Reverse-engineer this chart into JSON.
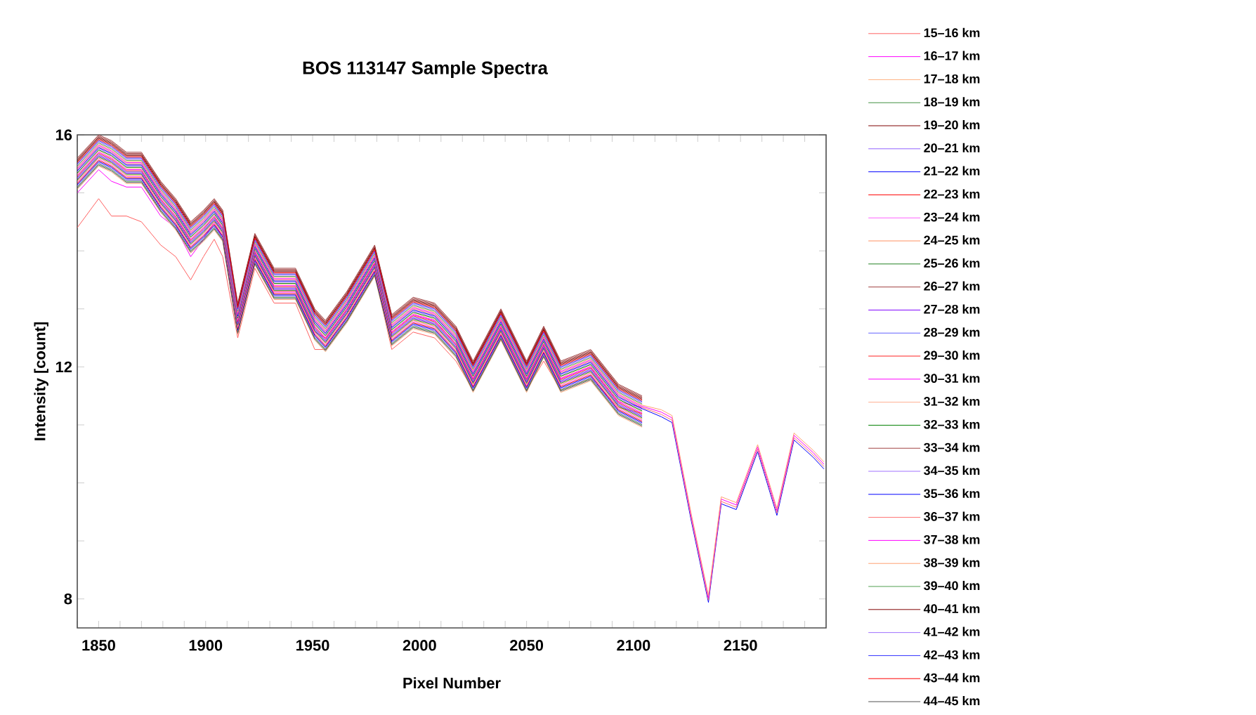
{
  "chart_data": {
    "type": "line",
    "title": "BOS 113147 Sample Spectra",
    "xlabel": "Pixel Number",
    "ylabel": "Intensity [count]",
    "xlim": [
      1840,
      2190
    ],
    "ylim": [
      7.5,
      16
    ],
    "xticks": [
      {
        "value": 1840,
        "label": null
      },
      1850,
      {
        "value": 1860,
        "label": null
      },
      {
        "value": 1870,
        "label": null
      },
      {
        "value": 1880,
        "label": null
      },
      {
        "value": 1890,
        "label": null
      },
      1900,
      {
        "value": 1910,
        "label": null
      },
      {
        "value": 1920,
        "label": null
      },
      {
        "value": 1930,
        "label": null
      },
      {
        "value": 1940,
        "label": null
      },
      1950,
      {
        "value": 1960,
        "label": null
      },
      {
        "value": 1970,
        "label": null
      },
      {
        "value": 1980,
        "label": null
      },
      {
        "value": 1990,
        "label": null
      },
      2000,
      {
        "value": 2010,
        "label": null
      },
      {
        "value": 2020,
        "label": null
      },
      {
        "value": 2030,
        "label": null
      },
      {
        "value": 2040,
        "label": null
      },
      2050,
      {
        "value": 2060,
        "label": null
      },
      {
        "value": 2070,
        "label": null
      },
      {
        "value": 2080,
        "label": null
      },
      {
        "value": 2090,
        "label": null
      },
      2100,
      {
        "value": 2110,
        "label": null
      },
      {
        "value": 2120,
        "label": null
      },
      {
        "value": 2130,
        "label": null
      },
      {
        "value": 2140,
        "label": null
      },
      2150,
      {
        "value": 2160,
        "label": null
      },
      {
        "value": 2170,
        "label": null
      },
      {
        "value": 2180,
        "label": null
      }
    ],
    "yticks": [
      8,
      {
        "value": 9,
        "label": null
      },
      {
        "value": 10,
        "label": null
      },
      {
        "value": 11,
        "label": null
      },
      12,
      {
        "value": 13,
        "label": null
      },
      {
        "value": 14,
        "label": null
      },
      {
        "value": 15,
        "label": null
      },
      16
    ],
    "legend": "right",
    "x": [
      1840,
      1850,
      1856,
      1863,
      1870,
      1879,
      1886,
      1893,
      1899,
      1904,
      1908,
      1915,
      1923,
      1932,
      1942,
      1951,
      1956,
      1966,
      1979,
      1987,
      1997,
      2007,
      2017,
      2025,
      2038,
      2050,
      2058,
      2066,
      2080,
      2093,
      2104,
      2113,
      2118,
      2127,
      2135,
      2141,
      2148,
      2158,
      2167,
      2175,
      2184,
      2189
    ],
    "series": [
      {
        "name": "15–16 km",
        "color": "#ff6060",
        "values": [
          14.4,
          14.9,
          14.6,
          14.6,
          14.5,
          14.1,
          13.9,
          13.5,
          13.9,
          14.2,
          13.9,
          12.5,
          13.7,
          13.1,
          13.1,
          12.3,
          12.3,
          12.8,
          13.6,
          12.3,
          12.6,
          12.5,
          12.1,
          11.6,
          12.5,
          11.6,
          12.1,
          11.6,
          11.8,
          11.3,
          11.2,
          null,
          null,
          null,
          null,
          null,
          null,
          null,
          null,
          null,
          null,
          null
        ]
      },
      {
        "name": "16–17 km",
        "color": "#ff00ff",
        "values": [
          15.0,
          15.4,
          15.2,
          15.1,
          15.1,
          14.6,
          14.4,
          13.9,
          14.2,
          14.5,
          14.2,
          12.7,
          13.9,
          13.3,
          13.3,
          12.6,
          12.5,
          13.0,
          13.8,
          12.6,
          12.9,
          12.8,
          12.4,
          11.8,
          12.7,
          11.8,
          12.4,
          11.8,
          12.0,
          11.4,
          11.3,
          null,
          null,
          null,
          null,
          null,
          null,
          null,
          null,
          null,
          null,
          null
        ]
      },
      {
        "name": "17–18 km",
        "color": "#ffb080",
        "values": [
          15.06,
          15.46,
          15.36,
          15.16,
          15.16,
          14.66,
          14.36,
          13.96,
          14.16,
          14.36,
          14.16,
          12.56,
          13.76,
          13.16,
          13.16,
          12.46,
          12.26,
          12.76,
          13.56,
          12.36,
          12.66,
          12.56,
          12.16,
          11.56,
          12.46,
          11.56,
          12.16,
          11.56,
          11.76,
          11.16,
          10.96,
          null,
          null,
          null,
          null,
          null,
          null,
          null,
          null,
          null,
          null,
          null
        ]
      },
      {
        "name": "18–19 km",
        "color": "#409040",
        "values": [
          15.1,
          15.5,
          15.4,
          15.2,
          15.2,
          14.7,
          14.4,
          14.0,
          14.2,
          14.4,
          14.2,
          12.6,
          13.8,
          13.2,
          13.2,
          12.5,
          12.3,
          12.8,
          13.6,
          12.4,
          12.7,
          12.6,
          12.2,
          11.6,
          12.5,
          11.6,
          12.2,
          11.6,
          11.8,
          11.2,
          11.0,
          null,
          null,
          null,
          null,
          null,
          null,
          null,
          null,
          null,
          null,
          null
        ]
      },
      {
        "name": "19–20 km",
        "color": "#800000",
        "values": [
          15.56,
          15.96,
          15.86,
          15.66,
          15.66,
          15.16,
          14.86,
          14.46,
          14.66,
          14.86,
          14.66,
          13.06,
          14.26,
          13.66,
          13.66,
          12.96,
          12.76,
          13.26,
          14.06,
          12.86,
          13.16,
          13.06,
          12.66,
          12.06,
          12.96,
          12.06,
          12.66,
          12.06,
          12.26,
          11.66,
          11.46,
          null,
          null,
          null,
          null,
          null,
          null,
          null,
          null,
          null,
          null,
          null
        ]
      },
      {
        "name": "20–21 km",
        "color": "#9060ff",
        "values": [
          15.12,
          15.52,
          15.42,
          15.22,
          15.22,
          14.72,
          14.42,
          14.02,
          14.22,
          14.42,
          14.22,
          12.62,
          13.82,
          13.22,
          13.22,
          12.52,
          12.32,
          12.82,
          13.62,
          12.42,
          12.72,
          12.62,
          12.22,
          11.62,
          12.52,
          11.62,
          12.22,
          11.62,
          11.82,
          11.22,
          11.02,
          null,
          null,
          null,
          null,
          null,
          null,
          null,
          null,
          null,
          null,
          null
        ]
      },
      {
        "name": "21–22 km",
        "color": "#0000ff",
        "values": [
          15.14,
          15.54,
          15.44,
          15.24,
          15.24,
          14.74,
          14.44,
          14.04,
          14.24,
          14.44,
          14.24,
          12.64,
          13.84,
          13.24,
          13.24,
          12.54,
          12.34,
          12.84,
          13.64,
          12.44,
          12.74,
          12.64,
          12.24,
          11.64,
          12.54,
          11.64,
          12.24,
          11.64,
          11.84,
          11.24,
          11.04,
          null,
          null,
          null,
          null,
          null,
          null,
          null,
          null,
          null,
          null,
          null
        ]
      },
      {
        "name": "22–23 km",
        "color": "#ff0000",
        "values": [
          15.16,
          15.56,
          15.46,
          15.26,
          15.26,
          14.76,
          14.46,
          14.06,
          14.26,
          14.46,
          14.26,
          12.66,
          13.86,
          13.26,
          13.26,
          12.56,
          12.36,
          12.86,
          13.66,
          12.46,
          12.76,
          12.66,
          12.26,
          11.66,
          12.56,
          11.66,
          12.26,
          11.66,
          11.86,
          11.26,
          11.06,
          null,
          null,
          null,
          null,
          null,
          null,
          null,
          null,
          null,
          null,
          null
        ]
      },
      {
        "name": "23–24 km",
        "color": "#ff60ff",
        "values": [
          15.18,
          15.58,
          15.48,
          15.28,
          15.28,
          14.78,
          14.48,
          14.08,
          14.28,
          14.48,
          14.28,
          12.68,
          13.88,
          13.28,
          13.28,
          12.58,
          12.38,
          12.88,
          13.68,
          12.48,
          12.78,
          12.68,
          12.28,
          11.68,
          12.58,
          11.68,
          12.28,
          11.68,
          11.88,
          11.28,
          11.08,
          null,
          null,
          null,
          null,
          null,
          null,
          null,
          null,
          null,
          null,
          null
        ]
      },
      {
        "name": "24–25 km",
        "color": "#ff9060",
        "values": [
          15.2,
          15.6,
          15.5,
          15.3,
          15.3,
          14.8,
          14.5,
          14.1,
          14.3,
          14.5,
          14.3,
          12.7,
          13.9,
          13.3,
          13.3,
          12.6,
          12.4,
          12.9,
          13.7,
          12.5,
          12.8,
          12.7,
          12.3,
          11.7,
          12.6,
          11.7,
          12.3,
          11.7,
          11.9,
          11.3,
          11.1,
          null,
          null,
          null,
          null,
          null,
          null,
          null,
          null,
          null,
          null,
          null
        ]
      },
      {
        "name": "25–26 km",
        "color": "#208020",
        "values": [
          15.22,
          15.62,
          15.52,
          15.32,
          15.32,
          14.82,
          14.52,
          14.12,
          14.32,
          14.52,
          14.32,
          12.72,
          13.92,
          13.32,
          13.32,
          12.62,
          12.42,
          12.92,
          13.72,
          12.52,
          12.82,
          12.72,
          12.32,
          11.72,
          12.62,
          11.72,
          12.32,
          11.72,
          11.92,
          11.32,
          11.12,
          null,
          null,
          null,
          null,
          null,
          null,
          null,
          null,
          null,
          null,
          null
        ]
      },
      {
        "name": "26–27 km",
        "color": "#a04040",
        "values": [
          15.6,
          16.0,
          15.9,
          15.7,
          15.7,
          15.2,
          14.9,
          14.5,
          14.7,
          14.9,
          14.7,
          13.1,
          14.3,
          13.7,
          13.7,
          13.0,
          12.8,
          13.3,
          14.1,
          12.9,
          13.2,
          13.1,
          12.7,
          12.1,
          13.0,
          12.1,
          12.7,
          12.1,
          12.3,
          11.7,
          11.5,
          null,
          null,
          null,
          null,
          null,
          null,
          null,
          null,
          null,
          null,
          null
        ]
      },
      {
        "name": "27–28 km",
        "color": "#8000ff",
        "values": [
          15.24,
          15.64,
          15.54,
          15.34,
          15.34,
          14.84,
          14.54,
          14.14,
          14.34,
          14.54,
          14.34,
          12.74,
          13.94,
          13.34,
          13.34,
          12.64,
          12.44,
          12.94,
          13.74,
          12.54,
          12.84,
          12.74,
          12.34,
          11.74,
          12.64,
          11.74,
          12.34,
          11.74,
          11.94,
          11.34,
          11.14,
          null,
          null,
          null,
          null,
          null,
          null,
          null,
          null,
          null,
          null,
          null
        ]
      },
      {
        "name": "28–29 km",
        "color": "#6060ff",
        "values": [
          15.26,
          15.66,
          15.56,
          15.36,
          15.36,
          14.86,
          14.56,
          14.16,
          14.36,
          14.56,
          14.36,
          12.76,
          13.96,
          13.36,
          13.36,
          12.66,
          12.46,
          12.96,
          13.76,
          12.56,
          12.86,
          12.76,
          12.36,
          11.76,
          12.66,
          11.76,
          12.36,
          11.76,
          11.96,
          11.36,
          11.16,
          null,
          null,
          null,
          null,
          null,
          null,
          null,
          null,
          null,
          null,
          null
        ]
      },
      {
        "name": "29–30 km",
        "color": "#ff2020",
        "values": [
          15.28,
          15.68,
          15.58,
          15.38,
          15.38,
          14.88,
          14.58,
          14.18,
          14.38,
          14.58,
          14.38,
          12.78,
          13.98,
          13.38,
          13.38,
          12.68,
          12.48,
          12.98,
          13.78,
          12.58,
          12.88,
          12.78,
          12.38,
          11.78,
          12.68,
          11.78,
          12.38,
          11.78,
          11.98,
          11.38,
          11.18,
          null,
          null,
          null,
          null,
          null,
          null,
          null,
          null,
          null,
          null,
          null
        ]
      },
      {
        "name": "30–31 km",
        "color": "#ff00ff",
        "values": [
          15.3,
          15.7,
          15.6,
          15.4,
          15.4,
          14.9,
          14.6,
          14.2,
          14.4,
          14.6,
          14.4,
          12.8,
          14.0,
          13.4,
          13.4,
          12.7,
          12.5,
          13.0,
          13.8,
          12.6,
          12.9,
          12.8,
          12.4,
          11.8,
          12.7,
          11.8,
          12.4,
          11.8,
          12.0,
          11.4,
          11.2,
          null,
          null,
          null,
          null,
          null,
          null,
          null,
          null,
          null,
          null,
          null
        ]
      },
      {
        "name": "31–32 km",
        "color": "#ffb090",
        "values": [
          15.32,
          15.72,
          15.62,
          15.42,
          15.42,
          14.92,
          14.62,
          14.22,
          14.42,
          14.62,
          14.42,
          12.82,
          14.02,
          13.42,
          13.42,
          12.72,
          12.52,
          13.02,
          13.82,
          12.62,
          12.92,
          12.82,
          12.42,
          11.82,
          12.72,
          11.82,
          12.42,
          11.82,
          12.02,
          11.42,
          11.22,
          null,
          null,
          null,
          null,
          null,
          null,
          null,
          null,
          null,
          null,
          null
        ]
      },
      {
        "name": "32–33 km",
        "color": "#008000",
        "values": [
          15.34,
          15.74,
          15.64,
          15.44,
          15.44,
          14.94,
          14.64,
          14.24,
          14.44,
          14.64,
          14.44,
          12.84,
          14.04,
          13.44,
          13.44,
          12.74,
          12.54,
          13.04,
          13.84,
          12.64,
          12.94,
          12.84,
          12.44,
          11.84,
          12.74,
          11.84,
          12.44,
          11.84,
          12.04,
          11.44,
          11.24,
          null,
          null,
          null,
          null,
          null,
          null,
          null,
          null,
          null,
          null,
          null
        ]
      },
      {
        "name": "33–34 km",
        "color": "#a04040",
        "values": [
          15.58,
          15.98,
          15.88,
          15.68,
          15.68,
          15.18,
          14.88,
          14.48,
          14.68,
          14.88,
          14.68,
          13.08,
          14.28,
          13.68,
          13.68,
          12.98,
          12.78,
          13.28,
          14.08,
          12.88,
          13.18,
          13.08,
          12.68,
          12.08,
          12.98,
          12.08,
          12.68,
          12.08,
          12.28,
          11.68,
          11.48,
          null,
          null,
          null,
          null,
          null,
          null,
          null,
          null,
          null,
          null,
          null
        ]
      },
      {
        "name": "34–35 km",
        "color": "#a070ff",
        "values": [
          15.36,
          15.76,
          15.66,
          15.46,
          15.46,
          14.96,
          14.66,
          14.26,
          14.46,
          14.66,
          14.46,
          12.86,
          14.06,
          13.46,
          13.46,
          12.76,
          12.56,
          13.06,
          13.86,
          12.66,
          12.96,
          12.86,
          12.46,
          11.86,
          12.76,
          11.86,
          12.46,
          11.86,
          12.06,
          11.46,
          11.26,
          null,
          null,
          null,
          null,
          null,
          null,
          null,
          null,
          null,
          null,
          null
        ]
      },
      {
        "name": "35–36 km",
        "color": "#0000ff",
        "values": [
          15.38,
          15.78,
          15.68,
          15.48,
          15.48,
          14.98,
          14.68,
          14.28,
          14.48,
          14.68,
          14.48,
          12.88,
          14.08,
          13.48,
          13.48,
          12.78,
          12.58,
          13.08,
          13.88,
          12.68,
          12.98,
          12.88,
          12.48,
          11.88,
          12.78,
          11.88,
          12.48,
          11.88,
          12.08,
          11.48,
          11.28,
          11.14,
          11.04,
          9.34,
          7.94,
          9.64,
          9.54,
          10.54,
          9.44,
          10.74,
          10.44,
          10.24
        ]
      },
      {
        "name": "36–37 km",
        "color": "#ff7070",
        "values": [
          15.4,
          15.8,
          15.7,
          15.5,
          15.5,
          15.0,
          14.7,
          14.3,
          14.5,
          14.7,
          14.5,
          12.9,
          14.1,
          13.5,
          13.5,
          12.8,
          12.6,
          13.1,
          13.9,
          12.7,
          13.0,
          12.9,
          12.5,
          11.9,
          12.8,
          11.9,
          12.5,
          11.9,
          12.1,
          11.5,
          11.3,
          11.18,
          11.08,
          9.38,
          7.98,
          9.68,
          9.58,
          10.58,
          9.48,
          10.78,
          10.48,
          10.28
        ]
      },
      {
        "name": "37–38 km",
        "color": "#ff00ff",
        "values": [
          15.42,
          15.82,
          15.72,
          15.52,
          15.52,
          15.02,
          14.72,
          14.32,
          14.52,
          14.72,
          14.52,
          12.92,
          14.12,
          13.52,
          13.52,
          12.82,
          12.62,
          13.12,
          13.92,
          12.72,
          13.02,
          12.92,
          12.52,
          11.92,
          12.82,
          11.92,
          12.52,
          11.92,
          12.12,
          11.52,
          11.32,
          11.22,
          11.12,
          9.42,
          8.02,
          9.72,
          9.62,
          10.62,
          9.52,
          10.82,
          10.52,
          10.32
        ]
      },
      {
        "name": "38–39 km",
        "color": "#ffa070",
        "values": [
          15.44,
          15.84,
          15.74,
          15.54,
          15.54,
          15.04,
          14.74,
          14.34,
          14.54,
          14.74,
          14.54,
          12.94,
          14.14,
          13.54,
          13.54,
          12.84,
          12.64,
          13.14,
          13.94,
          12.74,
          13.04,
          12.94,
          12.54,
          11.94,
          12.84,
          11.94,
          12.54,
          11.94,
          12.14,
          11.54,
          11.34,
          11.26,
          11.16,
          9.46,
          8.06,
          9.76,
          9.66,
          10.66,
          9.56,
          10.86,
          10.56,
          10.36
        ]
      },
      {
        "name": "39–40 km",
        "color": "#50a050",
        "values": [
          15.46,
          15.86,
          15.76,
          15.56,
          15.56,
          15.06,
          14.76,
          14.36,
          14.56,
          14.76,
          14.56,
          12.96,
          14.16,
          13.56,
          13.56,
          12.86,
          12.66,
          13.16,
          13.96,
          12.76,
          13.06,
          12.96,
          12.56,
          11.96,
          12.86,
          11.96,
          12.56,
          11.96,
          12.16,
          11.56,
          11.36,
          null,
          null,
          null,
          null,
          null,
          null,
          null,
          null,
          null,
          null,
          null
        ]
      },
      {
        "name": "40–41 km",
        "color": "#800000",
        "values": [
          15.54,
          15.94,
          15.84,
          15.64,
          15.64,
          15.14,
          14.84,
          14.44,
          14.64,
          14.84,
          14.64,
          13.04,
          14.24,
          13.64,
          13.64,
          12.94,
          12.74,
          13.24,
          14.04,
          12.84,
          13.14,
          13.04,
          12.64,
          12.04,
          12.94,
          12.04,
          12.64,
          12.04,
          12.24,
          11.64,
          11.44,
          null,
          null,
          null,
          null,
          null,
          null,
          null,
          null,
          null,
          null,
          null
        ]
      },
      {
        "name": "41–42 km",
        "color": "#a070ff",
        "values": [
          15.48,
          15.88,
          15.78,
          15.58,
          15.58,
          15.08,
          14.78,
          14.38,
          14.58,
          14.78,
          14.58,
          12.98,
          14.18,
          13.58,
          13.58,
          12.88,
          12.68,
          13.18,
          13.98,
          12.78,
          13.08,
          12.98,
          12.58,
          11.98,
          12.88,
          11.98,
          12.58,
          11.98,
          12.18,
          11.58,
          11.38,
          null,
          null,
          null,
          null,
          null,
          null,
          null,
          null,
          null,
          null,
          null
        ]
      },
      {
        "name": "42–43 km",
        "color": "#3030ff",
        "values": [
          15.5,
          15.9,
          15.8,
          15.6,
          15.6,
          15.1,
          14.8,
          14.4,
          14.6,
          14.8,
          14.6,
          13.0,
          14.2,
          13.6,
          13.6,
          12.9,
          12.7,
          13.2,
          14.0,
          12.8,
          13.1,
          13.0,
          12.6,
          12.0,
          12.9,
          12.0,
          12.6,
          12.0,
          12.2,
          11.6,
          11.4,
          null,
          null,
          null,
          null,
          null,
          null,
          null,
          null,
          null,
          null,
          null
        ]
      },
      {
        "name": "43–44 km",
        "color": "#ff0000",
        "values": [
          15.52,
          15.92,
          15.82,
          15.62,
          15.62,
          15.12,
          14.82,
          14.42,
          14.62,
          14.82,
          14.62,
          13.02,
          14.22,
          13.62,
          13.62,
          12.92,
          12.72,
          13.22,
          14.02,
          12.82,
          13.12,
          13.02,
          12.62,
          12.02,
          12.92,
          12.02,
          12.62,
          12.02,
          12.22,
          11.62,
          11.42,
          null,
          null,
          null,
          null,
          null,
          null,
          null,
          null,
          null,
          null,
          null
        ]
      },
      {
        "name": "44–45 km",
        "color": "#505050",
        "values": [
          15.08,
          15.48,
          15.38,
          15.18,
          15.18,
          14.68,
          14.38,
          13.98,
          14.18,
          14.38,
          14.18,
          12.58,
          13.78,
          13.18,
          13.18,
          12.48,
          12.28,
          12.78,
          13.58,
          12.38,
          12.68,
          12.58,
          12.18,
          11.58,
          12.48,
          11.58,
          12.18,
          11.58,
          11.78,
          11.18,
          10.98,
          null,
          null,
          null,
          null,
          null,
          null,
          null,
          null,
          null,
          null,
          null
        ]
      }
    ]
  }
}
